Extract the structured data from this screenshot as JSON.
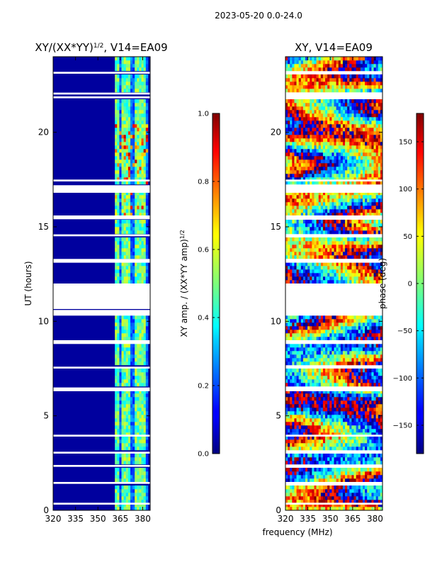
{
  "figure": {
    "suptitle": "2023-05-20 0.0-24.0",
    "xlabel_shared": "frequency (MHz)",
    "colors": {
      "missing": "#ffffff",
      "frame": "#000000"
    }
  },
  "chart_data": [
    {
      "type": "heatmap",
      "title_prefix": "XY/(XX*YY)",
      "title_power": "1/2",
      "title_suffix": ", V14=EA09",
      "xlabel": "",
      "ylabel": "UT (hours)",
      "xlim": [
        320,
        385
      ],
      "ylim": [
        0,
        24
      ],
      "xticks": [
        "320",
        "335",
        "350",
        "365",
        "380"
      ],
      "xtick_values": [
        320,
        335,
        350,
        365,
        380
      ],
      "yticks": [
        "0",
        "5",
        "10",
        "15",
        "20"
      ],
      "ytick_values": [
        0,
        5,
        10,
        15,
        20
      ],
      "colorbar": {
        "label_prefix": "XY amp. / (XX*YY amp)",
        "label_power": "1/2",
        "range": [
          0.0,
          1.0
        ],
        "ticks": [
          "0.0",
          "0.2",
          "0.4",
          "0.6",
          "0.8",
          "1.0"
        ],
        "tick_values": [
          0.0,
          0.2,
          0.4,
          0.6,
          0.8,
          1.0
        ]
      },
      "baseline_value": 0.03,
      "active_band_mhz": [
        361.5,
        383
      ],
      "bright_channels_mhz": [
        362.5,
        364,
        367,
        368.5,
        371,
        375,
        377.5,
        380.5
      ],
      "missing_ut_ranges": [
        [
          0.3,
          0.4
        ],
        [
          1.4,
          1.5
        ],
        [
          2.3,
          2.4
        ],
        [
          3.0,
          3.1
        ],
        [
          3.9,
          4.0
        ],
        [
          6.3,
          6.5
        ],
        [
          7.5,
          7.6
        ],
        [
          8.8,
          9.0
        ],
        [
          10.3,
          10.6
        ],
        [
          10.65,
          12.0
        ],
        [
          13.1,
          13.3
        ],
        [
          14.5,
          14.6
        ],
        [
          15.4,
          15.6
        ],
        [
          16.8,
          17.2
        ],
        [
          17.4,
          17.5
        ],
        [
          21.8,
          21.9
        ],
        [
          22.0,
          22.1
        ],
        [
          23.1,
          23.2
        ]
      ]
    },
    {
      "type": "heatmap",
      "title": "XY, V14=EA09",
      "xlabel": "",
      "ylabel": "",
      "xlim": [
        320,
        385
      ],
      "ylim": [
        0,
        24
      ],
      "xticks": [
        "320",
        "335",
        "350",
        "365",
        "380"
      ],
      "xtick_values": [
        320,
        335,
        350,
        365,
        380
      ],
      "yticks": [
        "0",
        "5",
        "10",
        "15",
        "20"
      ],
      "ytick_values": [
        0,
        5,
        10,
        15,
        20
      ],
      "colorbar": {
        "label": "phase (deg)",
        "range": [
          -180,
          180
        ],
        "ticks": [
          "−150",
          "−100",
          "−50",
          "0",
          "50",
          "100",
          "150"
        ],
        "tick_values": [
          -150,
          -100,
          -50,
          0,
          50,
          100,
          150
        ]
      },
      "missing_ut_ranges": [
        [
          0.3,
          0.4
        ],
        [
          1.4,
          1.5
        ],
        [
          2.3,
          2.4
        ],
        [
          3.0,
          3.1
        ],
        [
          3.9,
          4.0
        ],
        [
          6.3,
          6.5
        ],
        [
          7.5,
          7.6
        ],
        [
          8.8,
          9.0
        ],
        [
          10.3,
          10.6
        ],
        [
          10.65,
          12.0
        ],
        [
          13.1,
          13.3
        ],
        [
          14.5,
          14.6
        ],
        [
          15.4,
          15.6
        ],
        [
          16.8,
          17.2
        ],
        [
          17.4,
          17.5
        ],
        [
          21.8,
          21.9
        ],
        [
          22.0,
          22.1
        ],
        [
          23.1,
          23.2
        ]
      ]
    }
  ]
}
